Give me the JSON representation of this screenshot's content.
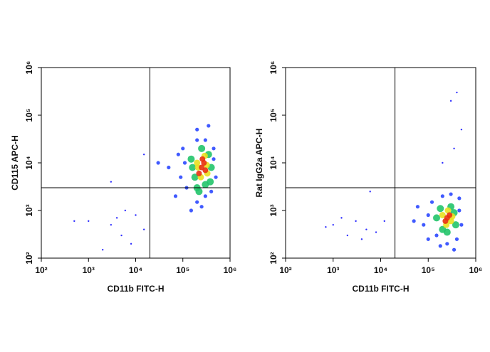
{
  "chart_data": [
    {
      "type": "scatter",
      "xlabel": "CD11b FITC-H",
      "ylabel": "CD115 APC-H",
      "log_x": true,
      "log_y": true,
      "xlim": [
        100,
        1000000
      ],
      "ylim": [
        100,
        1000000
      ],
      "xticks": [
        {
          "value": 100,
          "label": "10²"
        },
        {
          "value": 1000,
          "label": "10³"
        },
        {
          "value": 10000,
          "label": "10⁴"
        },
        {
          "value": 100000,
          "label": "10⁵"
        },
        {
          "value": 1000000,
          "label": "10⁶"
        }
      ],
      "yticks": [
        {
          "value": 100,
          "label": "10²"
        },
        {
          "value": 1000,
          "label": "10³"
        },
        {
          "value": 10000,
          "label": "10⁴"
        },
        {
          "value": 100000,
          "label": "10⁵"
        },
        {
          "value": 1000000,
          "label": "10⁶"
        }
      ],
      "gate": {
        "x": 20000,
        "y": 3000
      },
      "series": [
        {
          "color": "#1a1aff",
          "x": [
            1000,
            3000,
            5000,
            10000,
            500,
            3000,
            15000,
            2000,
            8000,
            15000,
            6000,
            4000
          ],
          "y": [
            600,
            500,
            300,
            800,
            600,
            4000,
            15000,
            150,
            200,
            400,
            1000,
            700
          ]
        },
        {
          "color": "#1f3dff",
          "x": [
            100000,
            90000,
            120000,
            450000,
            500000,
            200000,
            300000,
            200000,
            250000,
            300000,
            110000,
            450000,
            70000,
            50000,
            30000,
            200000,
            350000,
            150000,
            400000,
            80000
          ],
          "y": [
            20000,
            5000,
            3000,
            20000,
            5000,
            30000,
            30000,
            1500,
            1200,
            2000,
            10000,
            12000,
            2000,
            8000,
            10000,
            50000,
            60000,
            1000,
            2500,
            15000
          ]
        },
        {
          "color": "#22c46a",
          "x": [
            150000,
            180000,
            350000,
            200000,
            300000,
            160000,
            400000,
            250000,
            220000,
            380000
          ],
          "y": [
            12000,
            5000,
            15000,
            3000,
            3500,
            8000,
            8000,
            20000,
            2500,
            4000
          ]
        },
        {
          "color": "#e8e020",
          "x": [
            200000,
            320000,
            240000,
            290000,
            330000,
            210000
          ],
          "y": [
            10000,
            9000,
            5000,
            14000,
            6000,
            8000
          ]
        },
        {
          "color": "#e83010",
          "x": [
            250000,
            280000,
            220000,
            300000,
            260000
          ],
          "y": [
            8000,
            10000,
            6000,
            7000,
            12000
          ]
        }
      ]
    },
    {
      "type": "scatter",
      "xlabel": "CD11b FITC-H",
      "ylabel": "Rat IgG2a APC-H",
      "log_x": true,
      "log_y": true,
      "xlim": [
        100,
        1000000
      ],
      "ylim": [
        100,
        1000000
      ],
      "xticks": [
        {
          "value": 100,
          "label": "10²"
        },
        {
          "value": 1000,
          "label": "10³"
        },
        {
          "value": 10000,
          "label": "10⁴"
        },
        {
          "value": 100000,
          "label": "10⁵"
        },
        {
          "value": 1000000,
          "label": "10⁶"
        }
      ],
      "yticks": [
        {
          "value": 100,
          "label": "10²"
        },
        {
          "value": 1000,
          "label": "10³"
        },
        {
          "value": 10000,
          "label": "10⁴"
        },
        {
          "value": 100000,
          "label": "10⁵"
        },
        {
          "value": 1000000,
          "label": "10⁶"
        }
      ],
      "gate": {
        "x": 20000,
        "y": 3000
      },
      "series": [
        {
          "color": "#1a1aff",
          "x": [
            1000,
            2000,
            3000,
            5000,
            8000,
            700,
            1500,
            4000,
            6000,
            12000,
            400000,
            300000,
            500000,
            200000,
            350000
          ],
          "y": [
            500,
            300,
            600,
            400,
            350,
            450,
            700,
            250,
            2500,
            600,
            300000,
            200000,
            50000,
            10000,
            20000
          ]
        },
        {
          "color": "#1f3dff",
          "x": [
            100000,
            80000,
            120000,
            450000,
            500000,
            200000,
            300000,
            150000,
            250000,
            400000,
            60000,
            450000,
            100000,
            350000,
            50000,
            180000
          ],
          "y": [
            800,
            500,
            1500,
            1000,
            500,
            2000,
            2200,
            300,
            200,
            250,
            1200,
            1800,
            250,
            150,
            600,
            180
          ]
        },
        {
          "color": "#22c46a",
          "x": [
            150000,
            350000,
            200000,
            300000,
            180000,
            380000,
            250000
          ],
          "y": [
            700,
            900,
            400,
            1200,
            1100,
            500,
            350
          ]
        },
        {
          "color": "#e8e020",
          "x": [
            200000,
            300000,
            260000,
            240000,
            320000
          ],
          "y": [
            800,
            600,
            1000,
            500,
            750
          ]
        },
        {
          "color": "#e83010",
          "x": [
            250000,
            280000,
            230000
          ],
          "y": [
            700,
            800,
            600
          ]
        }
      ]
    }
  ]
}
